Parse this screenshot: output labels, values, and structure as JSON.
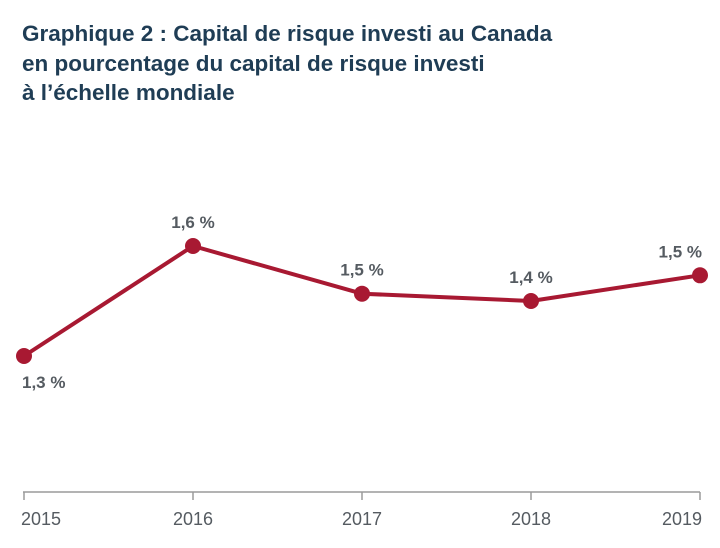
{
  "title_lines": [
    "Graphique 2 : Capital de risque investi au Canada",
    "en pourcentage du capital de risque investi",
    "à l’échelle mondiale"
  ],
  "colors": {
    "title": "#1f3d55",
    "series": "#a81932",
    "text": "#555b61",
    "axis": "#9a9a9a"
  },
  "chart_data": {
    "type": "line",
    "title": "Graphique 2 : Capital de risque investi au Canada en pourcentage du capital de risque investi à l’échelle mondiale",
    "x": [
      "2015",
      "2016",
      "2017",
      "2018",
      "2019"
    ],
    "series": [
      {
        "values": [
          1.3,
          1.6,
          1.5,
          1.4,
          1.5
        ],
        "labels": [
          "1,3 %",
          "1,6 %",
          "1,5 %",
          "1,4 %",
          "1,5 %"
        ],
        "display_values": [
          1.3,
          1.6,
          1.47,
          1.45,
          1.52
        ],
        "label_placement": [
          "below",
          "above",
          "above",
          "above",
          "above"
        ]
      }
    ],
    "xlabel": "",
    "ylabel": "",
    "grid": false,
    "legend": "none",
    "y_axis_visible": false
  }
}
